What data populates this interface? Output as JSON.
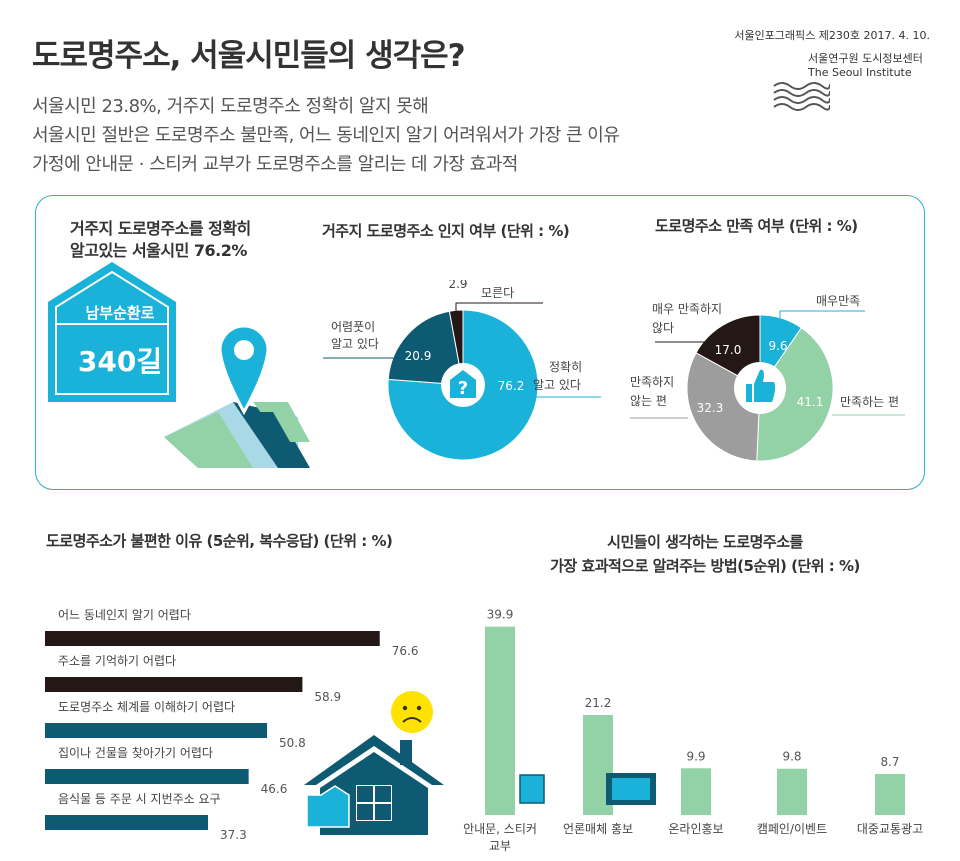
{
  "header": {
    "title": "도로명주소, 서울시민들의 생각은?",
    "subtitles": [
      "서울시민 23.8%, 거주지 도로명주소 정확히 알지 못해",
      "서울시민 절반은 도로명주소 불만족, 어느 동네인지 알기 어려워서가 가장 큰 이유",
      "가정에 안내문 · 스티커 교부가 도로명주소를 알리는 데 가장 효과적"
    ],
    "publication": "서울인포그래픽스 제230호 2017. 4. 10.",
    "institute_kr": "서울연구원 도시정보센터",
    "institute_en": "The Seoul Institute"
  },
  "highlight": {
    "text_line1": "거주지 도로명주소를 정확히",
    "text_line2": "알고있는 서울시민 76.2%",
    "sign_road": "남부순환로",
    "sign_number": "340길"
  },
  "colors": {
    "navy": "#0d5a73",
    "cyan": "#1ab2d8",
    "black": "#231816",
    "gray": "#9d9d9d",
    "green": "#93d1a7",
    "teal": "#0f5a73",
    "lightblue": "#a9d9e6",
    "yellow": "#ffe200"
  },
  "chart_data": [
    {
      "type": "pie",
      "title": "거주지 도로명주소 인지 여부 (단위 : %)",
      "slices": [
        {
          "name": "정확히 알고 있다",
          "label_lines": [
            "정확히",
            "알고 있다"
          ],
          "value": 76.2,
          "value_label": "76.2",
          "color": "#1ab2d8"
        },
        {
          "name": "어렴풋이 알고 있다",
          "label_lines": [
            "어렴풋이",
            "알고 있다"
          ],
          "value": 20.9,
          "value_label": "20.9",
          "color": "#0d5a73"
        },
        {
          "name": "모른다",
          "label_lines": [
            "모른다"
          ],
          "value": 2.9,
          "value_label": "2.9",
          "color": "#231816"
        }
      ]
    },
    {
      "type": "pie",
      "title": "도로명주소 만족 여부 (단위 : %)",
      "slices": [
        {
          "name": "매우만족",
          "label_lines": [
            "매우만족"
          ],
          "value": 9.6,
          "value_label": "9.6",
          "color": "#1ab2d8"
        },
        {
          "name": "만족하는 편",
          "label_lines": [
            "만족하는 편"
          ],
          "value": 41.1,
          "value_label": "41.1",
          "color": "#93d1a7"
        },
        {
          "name": "만족하지 않는 편",
          "label_lines": [
            "만족하지",
            "않는 편"
          ],
          "value": 32.3,
          "value_label": "32.3",
          "color": "#9d9d9d"
        },
        {
          "name": "매우 만족하지 않다",
          "label_lines": [
            "매우 만족하지",
            "않다"
          ],
          "value": 17.0,
          "value_label": "17.0",
          "color": "#231816"
        }
      ]
    },
    {
      "type": "bar",
      "orientation": "horizontal",
      "title": "도로명주소가 불편한 이유 (5순위, 복수응답) (단위 : %)",
      "categories": [
        "어느 동네인지 알기 어렵다",
        "주소를 기억하기 어렵다",
        "도로명주소 체계를 이해하기 어렵다",
        "집이나 건물을 찾아가기 어렵다",
        "음식물 등 주문 시 지번주소 요구"
      ],
      "values": [
        76.6,
        58.9,
        50.8,
        46.6,
        37.3
      ],
      "value_labels": [
        "76.6",
        "58.9",
        "50.8",
        "46.6",
        "37.3"
      ],
      "colors": [
        "#231816",
        "#231816",
        "#0f5a73",
        "#0f5a73",
        "#0f5a73"
      ],
      "xlim": [
        0,
        100
      ]
    },
    {
      "type": "bar",
      "orientation": "vertical",
      "title_lines": [
        "시민들이 생각하는 도로명주소를",
        "가장 효과적으로 알려주는 방법(5순위) (단위 : %)"
      ],
      "categories": [
        [
          "안내문, 스티커",
          "교부"
        ],
        [
          "언론매체 홍보"
        ],
        [
          "온라인홍보"
        ],
        [
          "캠페인/이벤트"
        ],
        [
          "대중교통광고"
        ]
      ],
      "values": [
        39.9,
        21.2,
        9.9,
        9.8,
        8.7
      ],
      "value_labels": [
        "39.9",
        "21.2",
        "9.9",
        "9.8",
        "8.7"
      ],
      "color": "#93d1a7",
      "ylim": [
        0,
        40
      ]
    }
  ]
}
